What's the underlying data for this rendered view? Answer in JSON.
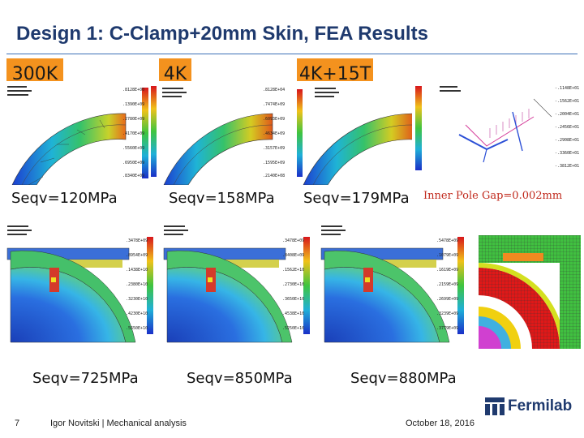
{
  "slide": {
    "title": "Design 1: C-Clamp+20mm Skin, FEA Results",
    "page_number": "7",
    "author": "Igor Novitski | Mechanical analysis",
    "date": "October 18, 2016",
    "logo_text": "Fermilab"
  },
  "top_row": {
    "tags": [
      "300K",
      "4K",
      "4K+15T"
    ],
    "captions": [
      "Seqv=120MPa",
      "Seqv=158MPa",
      "Seqv=179MPa"
    ],
    "note": "Inner Pole Gap=0.002mm"
  },
  "bottom_row": {
    "captions": [
      "Seqv=725MPa",
      "Seqv=850MPa",
      "Seqv=880MPa"
    ]
  },
  "colors": {
    "title": "#1f3a6e",
    "tag_fill": "#f4921e",
    "note": "#c0281b",
    "rule": "#3b6fb6"
  }
}
